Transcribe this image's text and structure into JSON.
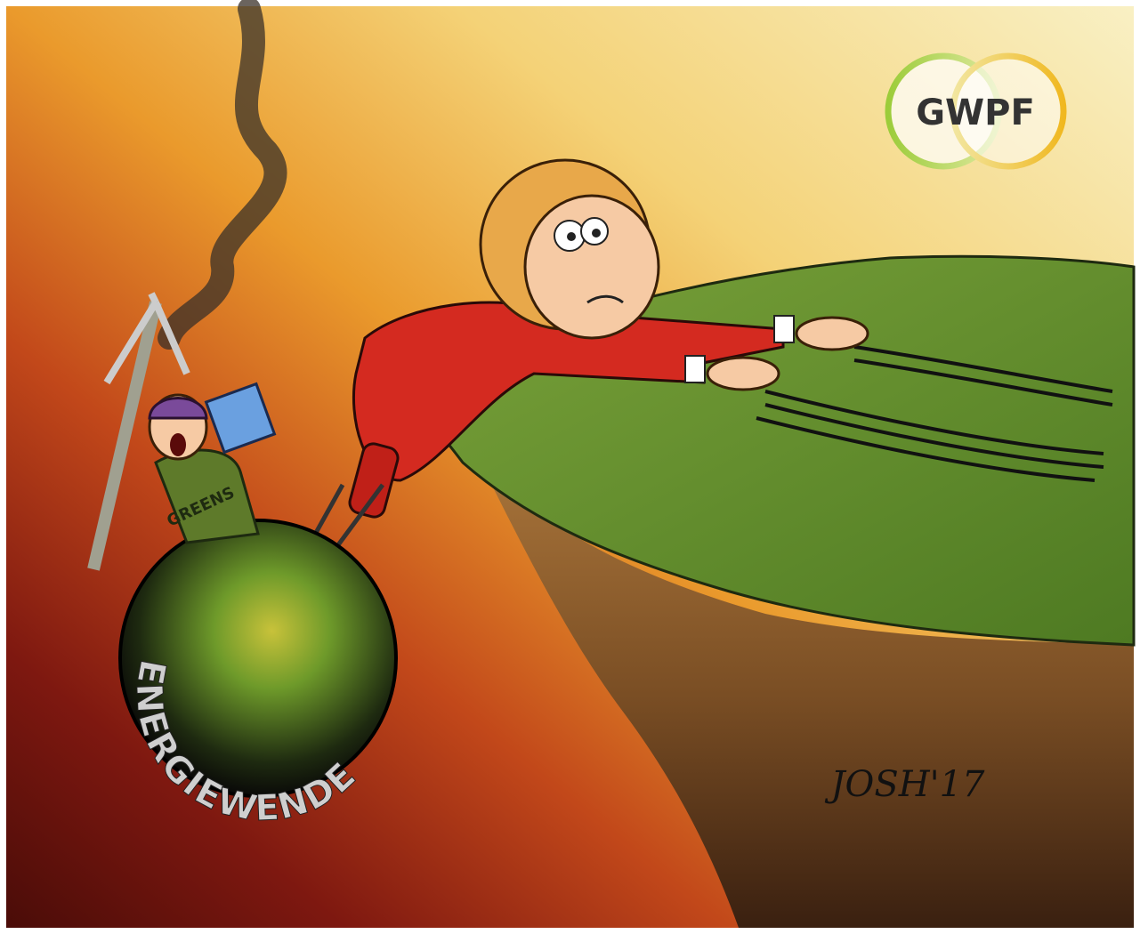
{
  "logo": {
    "text": "GWPF"
  },
  "labels": {
    "shirt": "GREENS",
    "ball": "ENERGIEWENDE"
  },
  "signature": "JOSH'17"
}
